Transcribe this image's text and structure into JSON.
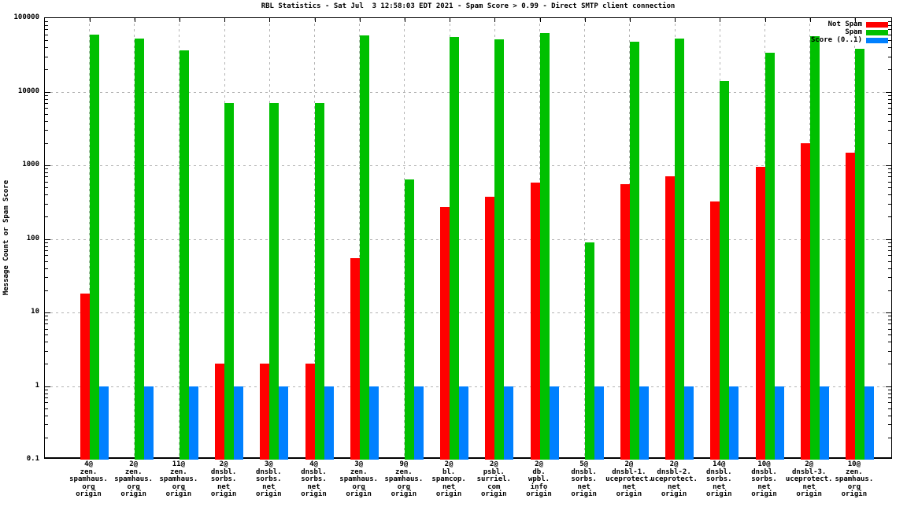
{
  "chart_data": {
    "type": "bar",
    "title": "RBL Statistics - Sat Jul  3 12:58:03 EDT 2021 - Spam Score > 0.99 - Direct SMTP client connection",
    "xlabel": "",
    "ylabel": "Message Count or Spam Score",
    "y_scale": "log",
    "ylim": [
      0.1,
      100000
    ],
    "ytick_labels": [
      "100000",
      "10000",
      "1000",
      "100",
      "10",
      "1",
      "0.1"
    ],
    "grid": true,
    "legend_position": "top-right",
    "legend": [
      {
        "label": "Not Spam",
        "color": "#ff0000"
      },
      {
        "label": "Spam",
        "color": "#00c000"
      },
      {
        "label": "Score (0..1)",
        "color": "#0080ff"
      }
    ],
    "categories": [
      [
        "4@",
        "zen.",
        "spamhaus.",
        "org",
        "origin"
      ],
      [
        "2@",
        "zen.",
        "spamhaus.",
        "org",
        "origin"
      ],
      [
        "11@",
        "zen.",
        "spamhaus.",
        "org",
        "origin"
      ],
      [
        "2@",
        "dnsbl.",
        "sorbs.",
        "net",
        "origin"
      ],
      [
        "3@",
        "dnsbl.",
        "sorbs.",
        "net",
        "origin"
      ],
      [
        "4@",
        "dnsbl.",
        "sorbs.",
        "net",
        "origin"
      ],
      [
        "3@",
        "zen.",
        "spamhaus.",
        "org",
        "origin"
      ],
      [
        "9@",
        "zen.",
        "spamhaus.",
        "org",
        "origin"
      ],
      [
        "2@",
        "bl.",
        "spamcop.",
        "net",
        "origin"
      ],
      [
        "2@",
        "psbl.",
        "surriel.",
        "com",
        "origin"
      ],
      [
        "2@",
        "db.",
        "wpbl.",
        "info",
        "origin"
      ],
      [
        "5@",
        "dnsbl.",
        "sorbs.",
        "net",
        "origin"
      ],
      [
        "2@",
        "dnsbl-1.",
        "uceprotect.",
        "net",
        "origin"
      ],
      [
        "2@",
        "dnsbl-2.",
        "uceprotect.",
        "net",
        "origin"
      ],
      [
        "14@",
        "dnsbl.",
        "sorbs.",
        "net",
        "origin"
      ],
      [
        "10@",
        "dnsbl.",
        "sorbs.",
        "net",
        "origin"
      ],
      [
        "2@",
        "dnsbl-3.",
        "uceprotect.",
        "net",
        "origin"
      ],
      [
        "10@",
        "zen.",
        "spamhaus.",
        "org",
        "origin"
      ]
    ],
    "series": [
      {
        "name": "Not Spam",
        "color": "#ff0000",
        "values": [
          18,
          0,
          0,
          2,
          2,
          2,
          55,
          0,
          270,
          370,
          580,
          0,
          560,
          700,
          320,
          950,
          2000,
          1500
        ]
      },
      {
        "name": "Spam",
        "color": "#00c000",
        "values": [
          60000,
          53000,
          36000,
          7000,
          7000,
          7000,
          58000,
          640,
          55000,
          52000,
          62000,
          90,
          48000,
          53000,
          14000,
          34000,
          57000,
          38000
        ]
      },
      {
        "name": "Score (0..1)",
        "color": "#0080ff",
        "values": [
          1,
          1,
          1,
          1,
          1,
          1,
          1,
          1,
          1,
          1,
          1,
          1,
          1,
          1,
          1,
          1,
          1,
          1
        ]
      }
    ]
  }
}
